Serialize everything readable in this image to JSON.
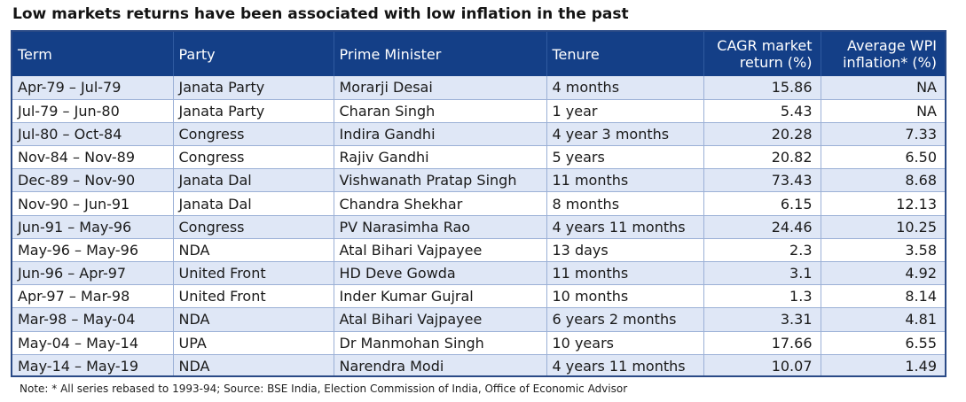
{
  "title": "Low markets returns have been associated with low inflation in the past",
  "table": {
    "headers": {
      "term": "Term",
      "party": "Party",
      "pm": "Prime Minister",
      "tenure": "Tenure",
      "cagr_line1": "CAGR market",
      "cagr_line2": "return (%)",
      "wpi_line1": "Average WPI",
      "wpi_line2": "inflation* (%)"
    },
    "rows": [
      {
        "term": "Apr-79 – Jul-79",
        "party": "Janata Party",
        "pm": "Morarji Desai",
        "tenure": "4 months",
        "cagr": "15.86",
        "wpi": "NA"
      },
      {
        "term": "Jul-79 – Jun-80",
        "party": "Janata Party",
        "pm": "Charan Singh",
        "tenure": "1 year",
        "cagr": "5.43",
        "wpi": "NA"
      },
      {
        "term": "Jul-80 – Oct-84",
        "party": "Congress",
        "pm": "Indira Gandhi",
        "tenure": "4 year 3  months",
        "cagr": "20.28",
        "wpi": "7.33"
      },
      {
        "term": "Nov-84 – Nov-89",
        "party": "Congress",
        "pm": "Rajiv Gandhi",
        "tenure": "5 years",
        "cagr": "20.82",
        "wpi": "6.50"
      },
      {
        "term": "Dec-89 – Nov-90",
        "party": "Janata Dal",
        "pm": "Vishwanath Pratap Singh",
        "tenure": "11 months",
        "cagr": "73.43",
        "wpi": "8.68"
      },
      {
        "term": "Nov-90 – Jun-91",
        "party": "Janata Dal",
        "pm": "Chandra Shekhar",
        "tenure": "8 months",
        "cagr": "6.15",
        "wpi": "12.13"
      },
      {
        "term": "Jun-91 – May-96",
        "party": "Congress",
        "pm": "PV Narasimha Rao",
        "tenure": "4 years 11 months",
        "cagr": "24.46",
        "wpi": "10.25"
      },
      {
        "term": "May-96 – May-96",
        "party": "NDA",
        "pm": "Atal Bihari Vajpayee",
        "tenure": "13 days",
        "cagr": "2.3",
        "wpi": "3.58"
      },
      {
        "term": "Jun-96 – Apr-97",
        "party": "United Front",
        "pm": "HD Deve Gowda",
        "tenure": "11 months",
        "cagr": "3.1",
        "wpi": "4.92"
      },
      {
        "term": "Apr-97 – Mar-98",
        "party": "United Front",
        "pm": "Inder Kumar Gujral",
        "tenure": "10 months",
        "cagr": "1.3",
        "wpi": "8.14"
      },
      {
        "term": "Mar-98 – May-04",
        "party": "NDA",
        "pm": "Atal Bihari Vajpayee",
        "tenure": "6 years 2 months",
        "cagr": "3.31",
        "wpi": "4.81"
      },
      {
        "term": "May-04 – May-14",
        "party": "UPA",
        "pm": "Dr Manmohan Singh",
        "tenure": "10 years",
        "cagr": "17.66",
        "wpi": "6.55"
      },
      {
        "term": "May-14 – May-19",
        "party": "NDA",
        "pm": "Narendra Modi",
        "tenure": "4 years 11 months",
        "cagr": "10.07",
        "wpi": "1.49"
      }
    ]
  },
  "note": "Note: * All series rebased to 1993-94; Source: BSE India, Election Commission of India, Office of Economic Advisor",
  "colors": {
    "header_bg": "#143f87",
    "row_alt_bg": "#dfe7f6",
    "border": "#9bb0d6"
  }
}
